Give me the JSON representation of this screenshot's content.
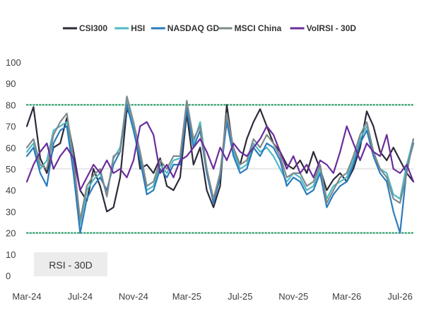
{
  "chart_data": {
    "type": "line",
    "title": "",
    "xlabel": "",
    "ylabel": "",
    "ylim": [
      0,
      100
    ],
    "yticks": [
      0,
      10,
      20,
      30,
      40,
      50,
      60,
      70,
      80,
      90,
      100
    ],
    "x_tick_labels": [
      "Mar-24",
      "Jul-24",
      "Nov-24",
      "Mar-25",
      "Jul-25",
      "Nov-25",
      "Mar-26",
      "Jul-26"
    ],
    "x_tick_positions": [
      0,
      4,
      8,
      12,
      16,
      20,
      24,
      28
    ],
    "x_range": [
      0,
      29
    ],
    "legend_position": "top",
    "grid": false,
    "reference_lines": [
      {
        "value": 80,
        "style": "dotted",
        "color": "#2e9e6b"
      },
      {
        "value": 50,
        "style": "solid",
        "color": "#d9d9d9"
      },
      {
        "value": 20,
        "style": "dotted",
        "color": "#2e9e6b"
      }
    ],
    "annotation": "RSI - 30D",
    "x": [
      0,
      0.5,
      1,
      1.5,
      2,
      2.5,
      3,
      3.5,
      4,
      4.5,
      5,
      5.5,
      6,
      6.5,
      7,
      7.5,
      8,
      8.5,
      9,
      9.5,
      10,
      10.5,
      11,
      11.5,
      12,
      12.5,
      13,
      13.5,
      14,
      14.5,
      15,
      15.5,
      16,
      16.5,
      17,
      17.5,
      18,
      18.5,
      19,
      19.5,
      20,
      20.5,
      21,
      21.5,
      22,
      22.5,
      23,
      23.5,
      24,
      24.5,
      25,
      25.5,
      26,
      26.5,
      27,
      27.5,
      28,
      28.5,
      29
    ],
    "series": [
      {
        "name": "CSI300",
        "color": "#2b2b3a",
        "values": [
          70,
          79,
          55,
          48,
          60,
          62,
          74,
          58,
          40,
          35,
          50,
          42,
          30,
          32,
          46,
          78,
          72,
          50,
          52,
          48,
          55,
          42,
          40,
          46,
          76,
          52,
          60,
          40,
          32,
          42,
          80,
          58,
          52,
          64,
          72,
          78,
          70,
          62,
          58,
          52,
          50,
          54,
          48,
          58,
          50,
          40,
          45,
          48,
          44,
          50,
          60,
          77,
          70,
          58,
          54,
          60,
          54,
          48,
          44
        ]
      },
      {
        "name": "HSI",
        "color": "#4fb8c6",
        "values": [
          58,
          62,
          50,
          54,
          68,
          70,
          72,
          52,
          24,
          40,
          45,
          48,
          38,
          55,
          60,
          82,
          70,
          56,
          40,
          42,
          52,
          48,
          54,
          55,
          80,
          62,
          72,
          50,
          35,
          48,
          74,
          58,
          50,
          52,
          62,
          58,
          60,
          56,
          50,
          44,
          48,
          46,
          40,
          42,
          50,
          36,
          42,
          44,
          46,
          54,
          64,
          70,
          58,
          50,
          48,
          38,
          36,
          52,
          64
        ]
      },
      {
        "name": "NASDAQ GD",
        "color": "#2b7bbd",
        "values": [
          56,
          60,
          48,
          42,
          62,
          68,
          70,
          48,
          20,
          36,
          42,
          46,
          40,
          52,
          58,
          80,
          68,
          54,
          38,
          40,
          50,
          46,
          52,
          52,
          78,
          60,
          68,
          48,
          34,
          46,
          72,
          56,
          48,
          50,
          60,
          56,
          62,
          60,
          54,
          42,
          46,
          44,
          38,
          40,
          48,
          32,
          38,
          42,
          44,
          52,
          62,
          68,
          56,
          48,
          44,
          30,
          20,
          50,
          62
        ]
      },
      {
        "name": "MSCI China",
        "color": "#7f8a8a",
        "values": [
          60,
          64,
          52,
          50,
          66,
          72,
          76,
          55,
          26,
          42,
          47,
          50,
          37,
          56,
          58,
          84,
          72,
          58,
          42,
          44,
          54,
          50,
          56,
          56,
          82,
          64,
          70,
          50,
          36,
          48,
          76,
          60,
          52,
          54,
          64,
          60,
          66,
          62,
          56,
          46,
          48,
          48,
          42,
          44,
          52,
          34,
          40,
          46,
          48,
          56,
          66,
          72,
          58,
          50,
          46,
          36,
          34,
          48,
          64
        ]
      },
      {
        "name": "VolRSI - 30D",
        "color": "#6a2d9b",
        "values": [
          44,
          52,
          58,
          62,
          50,
          56,
          60,
          55,
          40,
          46,
          52,
          48,
          54,
          48,
          50,
          46,
          54,
          70,
          72,
          66,
          48,
          52,
          46,
          54,
          56,
          60,
          64,
          58,
          50,
          60,
          54,
          62,
          58,
          56,
          60,
          64,
          70,
          66,
          58,
          50,
          56,
          48,
          52,
          46,
          54,
          52,
          48,
          58,
          70,
          62,
          54,
          62,
          58,
          56,
          66,
          50,
          48,
          52,
          44
        ]
      }
    ]
  }
}
